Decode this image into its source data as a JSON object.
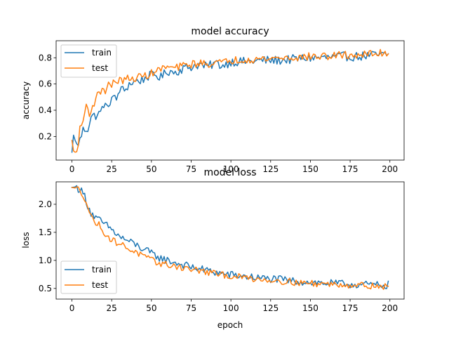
{
  "chart_data": [
    {
      "type": "line",
      "title": "model accuracy",
      "xlabel": "",
      "ylabel": "accuracy",
      "xlim": [
        -9.95,
        208.95
      ],
      "ylim": [
        0.02,
        0.93
      ],
      "xticks": [
        0,
        25,
        50,
        75,
        100,
        125,
        150,
        175,
        200
      ],
      "yticks": [
        0.2,
        0.4,
        0.6,
        0.8
      ],
      "ytick_labels": [
        "0.2",
        "0.4",
        "0.6",
        "0.8"
      ],
      "legend": "upper left",
      "anchors": {
        "train": [
          [
            0,
            0.08
          ],
          [
            1,
            0.21
          ],
          [
            3,
            0.13
          ],
          [
            5,
            0.17
          ],
          [
            7,
            0.25
          ],
          [
            10,
            0.26
          ],
          [
            12,
            0.35
          ],
          [
            15,
            0.36
          ],
          [
            18,
            0.38
          ],
          [
            20,
            0.45
          ],
          [
            22,
            0.41
          ],
          [
            25,
            0.5
          ],
          [
            28,
            0.48
          ],
          [
            30,
            0.56
          ],
          [
            33,
            0.55
          ],
          [
            36,
            0.6
          ],
          [
            40,
            0.62
          ],
          [
            44,
            0.63
          ],
          [
            48,
            0.66
          ],
          [
            52,
            0.67
          ],
          [
            56,
            0.65
          ],
          [
            60,
            0.7
          ],
          [
            65,
            0.69
          ],
          [
            70,
            0.72
          ],
          [
            75,
            0.73
          ],
          [
            80,
            0.75
          ],
          [
            85,
            0.73
          ],
          [
            90,
            0.76
          ],
          [
            95,
            0.74
          ],
          [
            100,
            0.77
          ],
          [
            110,
            0.77
          ],
          [
            120,
            0.78
          ],
          [
            130,
            0.78
          ],
          [
            140,
            0.79
          ],
          [
            150,
            0.8
          ],
          [
            160,
            0.8
          ],
          [
            170,
            0.81
          ],
          [
            180,
            0.81
          ],
          [
            190,
            0.82
          ],
          [
            199,
            0.82
          ]
        ],
        "test": [
          [
            0,
            0.17
          ],
          [
            1,
            0.09
          ],
          [
            3,
            0.07
          ],
          [
            5,
            0.25
          ],
          [
            7,
            0.32
          ],
          [
            9,
            0.44
          ],
          [
            11,
            0.38
          ],
          [
            13,
            0.42
          ],
          [
            15,
            0.5
          ],
          [
            17,
            0.52
          ],
          [
            19,
            0.57
          ],
          [
            21,
            0.55
          ],
          [
            23,
            0.6
          ],
          [
            25,
            0.59
          ],
          [
            28,
            0.63
          ],
          [
            31,
            0.62
          ],
          [
            34,
            0.65
          ],
          [
            37,
            0.62
          ],
          [
            40,
            0.65
          ],
          [
            45,
            0.66
          ],
          [
            50,
            0.68
          ],
          [
            55,
            0.71
          ],
          [
            60,
            0.73
          ],
          [
            65,
            0.72
          ],
          [
            70,
            0.74
          ],
          [
            75,
            0.75
          ],
          [
            80,
            0.76
          ],
          [
            85,
            0.75
          ],
          [
            90,
            0.77
          ],
          [
            95,
            0.76
          ],
          [
            100,
            0.78
          ],
          [
            110,
            0.79
          ],
          [
            120,
            0.79
          ],
          [
            130,
            0.8
          ],
          [
            140,
            0.8
          ],
          [
            150,
            0.81
          ],
          [
            160,
            0.81
          ],
          [
            170,
            0.82
          ],
          [
            180,
            0.82
          ],
          [
            190,
            0.83
          ],
          [
            199,
            0.84
          ]
        ]
      },
      "noise": {
        "train": 0.035,
        "test": 0.03
      },
      "series": [
        {
          "name": "train",
          "color": "#1f77b4"
        },
        {
          "name": "test",
          "color": "#ff7f0e"
        }
      ]
    },
    {
      "type": "line",
      "title": "model loss",
      "xlabel": "epoch",
      "ylabel": "loss",
      "xlim": [
        -9.95,
        208.95
      ],
      "ylim": [
        0.31,
        2.4
      ],
      "xticks": [
        0,
        25,
        50,
        75,
        100,
        125,
        150,
        175,
        200
      ],
      "yticks": [
        0.5,
        1.0,
        1.5,
        2.0
      ],
      "ytick_labels": [
        "0.5",
        "1.0",
        "1.5",
        "2.0"
      ],
      "legend": "lower left",
      "anchors": {
        "train": [
          [
            0,
            2.3
          ],
          [
            2,
            2.31
          ],
          [
            5,
            2.27
          ],
          [
            8,
            2.15
          ],
          [
            10,
            1.98
          ],
          [
            12,
            1.85
          ],
          [
            15,
            1.75
          ],
          [
            18,
            1.7
          ],
          [
            20,
            1.65
          ],
          [
            23,
            1.6
          ],
          [
            26,
            1.52
          ],
          [
            30,
            1.42
          ],
          [
            35,
            1.35
          ],
          [
            40,
            1.28
          ],
          [
            45,
            1.2
          ],
          [
            50,
            1.12
          ],
          [
            55,
            1.05
          ],
          [
            60,
            1.0
          ],
          [
            65,
            0.96
          ],
          [
            70,
            0.92
          ],
          [
            75,
            0.88
          ],
          [
            80,
            0.85
          ],
          [
            85,
            0.82
          ],
          [
            90,
            0.79
          ],
          [
            95,
            0.76
          ],
          [
            100,
            0.74
          ],
          [
            110,
            0.71
          ],
          [
            120,
            0.68
          ],
          [
            130,
            0.66
          ],
          [
            140,
            0.63
          ],
          [
            150,
            0.61
          ],
          [
            160,
            0.59
          ],
          [
            170,
            0.58
          ],
          [
            180,
            0.57
          ],
          [
            190,
            0.56
          ],
          [
            199,
            0.56
          ]
        ],
        "test": [
          [
            0,
            2.3
          ],
          [
            2,
            2.29
          ],
          [
            5,
            2.26
          ],
          [
            8,
            2.12
          ],
          [
            10,
            1.95
          ],
          [
            12,
            1.78
          ],
          [
            14,
            1.7
          ],
          [
            17,
            1.63
          ],
          [
            20,
            1.52
          ],
          [
            23,
            1.4
          ],
          [
            26,
            1.35
          ],
          [
            30,
            1.3
          ],
          [
            35,
            1.22
          ],
          [
            40,
            1.15
          ],
          [
            45,
            1.07
          ],
          [
            50,
            1.0
          ],
          [
            55,
            0.95
          ],
          [
            60,
            0.92
          ],
          [
            65,
            0.9
          ],
          [
            70,
            0.87
          ],
          [
            75,
            0.84
          ],
          [
            80,
            0.82
          ],
          [
            85,
            0.79
          ],
          [
            90,
            0.76
          ],
          [
            95,
            0.74
          ],
          [
            100,
            0.72
          ],
          [
            110,
            0.69
          ],
          [
            120,
            0.66
          ],
          [
            130,
            0.64
          ],
          [
            140,
            0.61
          ],
          [
            150,
            0.59
          ],
          [
            160,
            0.58
          ],
          [
            170,
            0.57
          ],
          [
            180,
            0.56
          ],
          [
            190,
            0.55
          ],
          [
            199,
            0.52
          ]
        ]
      },
      "noise": {
        "train": 0.07,
        "test": 0.06
      },
      "series": [
        {
          "name": "train",
          "color": "#1f77b4"
        },
        {
          "name": "test",
          "color": "#ff7f0e"
        }
      ]
    }
  ]
}
